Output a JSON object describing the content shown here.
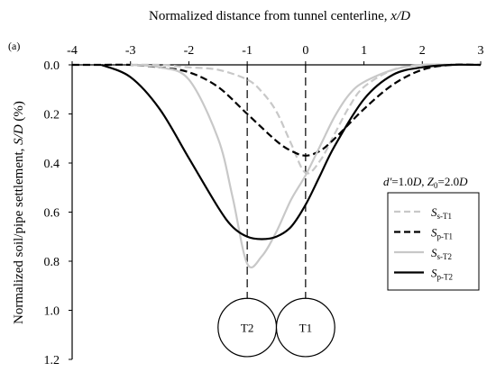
{
  "chart_data": {
    "type": "line",
    "panel_label": "(a)",
    "xlabel_pre": "Normalized distance from tunnel centerline, ",
    "xlabel_var": "x/D",
    "ylabel_pre": "Normalized soil/pipe settlement, ",
    "ylabel_var": "S/D",
    "ylabel_post": " (%)",
    "xlim": [
      -4,
      3
    ],
    "ylim": [
      0,
      1.2
    ],
    "y_inverted": true,
    "x_axis_position": "top",
    "x_ticks": [
      -4,
      -3,
      -2,
      -1,
      0,
      1,
      2,
      3
    ],
    "y_ticks": [
      "0.0",
      "0.2",
      "0.4",
      "0.6",
      "0.8",
      "1.0",
      "1.2"
    ],
    "series": [
      {
        "name_main": "S",
        "name_sub": "s-T1",
        "color": "#c8c8c8",
        "dash": "dashed",
        "x": [
          -3.0,
          -2.5,
          -2.0,
          -1.5,
          -1.0,
          -0.75,
          -0.5,
          -0.25,
          0.0,
          0.25,
          0.5,
          0.75,
          1.0,
          1.5,
          2.0,
          2.5
        ],
        "y": [
          0.0,
          0.0,
          0.01,
          0.02,
          0.06,
          0.11,
          0.19,
          0.32,
          0.44,
          0.39,
          0.28,
          0.17,
          0.09,
          0.02,
          0.0,
          0.0
        ]
      },
      {
        "name_main": "S",
        "name_sub": "p-T1",
        "color": "#000000",
        "dash": "dashed",
        "x": [
          -4.0,
          -3.5,
          -3.0,
          -2.5,
          -2.0,
          -1.5,
          -1.0,
          -0.5,
          -0.25,
          0.0,
          0.25,
          0.5,
          1.0,
          1.5,
          2.0,
          2.5,
          3.0
        ],
        "y": [
          0.0,
          0.0,
          0.0,
          0.01,
          0.03,
          0.09,
          0.2,
          0.31,
          0.35,
          0.37,
          0.35,
          0.3,
          0.18,
          0.08,
          0.02,
          0.0,
          0.0
        ]
      },
      {
        "name_main": "S",
        "name_sub": "s-T2",
        "color": "#c8c8c8",
        "dash": "solid",
        "x": [
          -3.0,
          -2.5,
          -2.0,
          -1.5,
          -1.25,
          -1.0,
          -0.75,
          -0.5,
          -0.25,
          0.0,
          0.25,
          0.5,
          0.75,
          1.0,
          1.5,
          2.0,
          2.5,
          3.0
        ],
        "y": [
          0.0,
          0.01,
          0.06,
          0.3,
          0.54,
          0.81,
          0.78,
          0.68,
          0.55,
          0.45,
          0.33,
          0.21,
          0.12,
          0.07,
          0.02,
          0.0,
          0.0,
          0.0
        ]
      },
      {
        "name_main": "S",
        "name_sub": "p-T2",
        "color": "#000000",
        "dash": "solid",
        "x": [
          -3.5,
          -3.0,
          -2.5,
          -2.0,
          -1.5,
          -1.25,
          -1.0,
          -0.75,
          -0.5,
          -0.25,
          0.0,
          0.25,
          0.5,
          1.0,
          1.5,
          2.0,
          2.5,
          3.0
        ],
        "y": [
          0.0,
          0.05,
          0.18,
          0.38,
          0.58,
          0.66,
          0.7,
          0.71,
          0.7,
          0.66,
          0.57,
          0.45,
          0.33,
          0.14,
          0.04,
          0.01,
          0.0,
          0.0
        ]
      }
    ],
    "verticals": [
      -1,
      0
    ],
    "tunnels": [
      {
        "label": "T2",
        "x": -1,
        "y": 1.07,
        "r": 0.5
      },
      {
        "label": "T1",
        "x": 0,
        "y": 1.07,
        "r": 0.5
      }
    ],
    "note": {
      "d_var": "d'",
      "d_val": "=1.0",
      "d_unit": "D",
      "sep": ", ",
      "z_var": "Z",
      "z_sub": "0",
      "z_val": "=2.0",
      "z_unit": "D"
    },
    "legend_position": "right"
  }
}
